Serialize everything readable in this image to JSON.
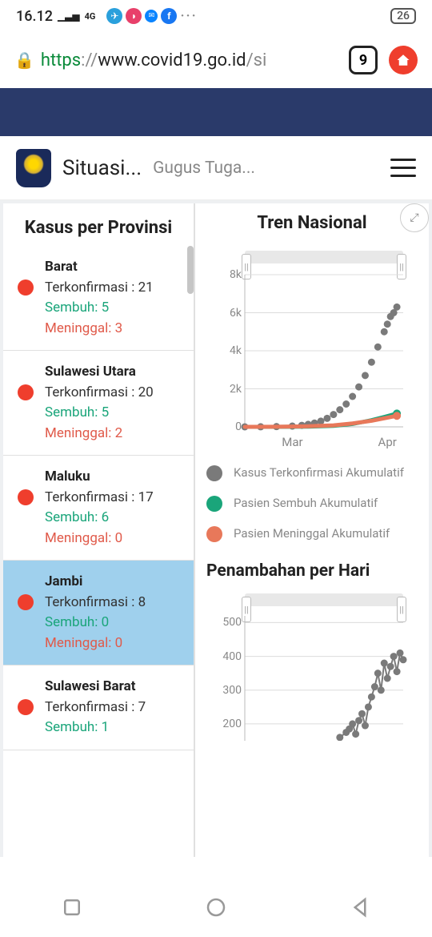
{
  "status": {
    "time": "16.12",
    "signal": "4G",
    "battery": "26"
  },
  "url": {
    "https": "https",
    "sep": "://",
    "host": "www.covid19.go.id",
    "path": "/si"
  },
  "tabs": "9",
  "header": {
    "title": "Situasi...",
    "subtitle": "Gugus Tuga..."
  },
  "left": {
    "title": "Kasus per Provinsi",
    "items": [
      {
        "name": "Barat",
        "conf": "Terkonfirmasi : 21",
        "sembuh": "Sembuh: 5",
        "meninggal": "Meninggal: 3",
        "selected": false
      },
      {
        "name": "Sulawesi Utara",
        "conf": "Terkonfirmasi : 20",
        "sembuh": "Sembuh: 5",
        "meninggal": "Meninggal: 2",
        "selected": false
      },
      {
        "name": "Maluku",
        "conf": "Terkonfirmasi : 17",
        "sembuh": "Sembuh: 6",
        "meninggal": "Meninggal: 0",
        "selected": false
      },
      {
        "name": "Jambi",
        "conf": "Terkonfirmasi : 8",
        "sembuh": "Sembuh: 0",
        "meninggal": "Meninggal: 0",
        "selected": true
      },
      {
        "name": "Sulawesi Barat",
        "conf": "Terkonfirmasi : 7",
        "sembuh": "Sembuh: 1",
        "meninggal": "",
        "selected": false
      }
    ]
  },
  "chart1": {
    "title": "Tren Nasional",
    "ylim": [
      0,
      8000
    ],
    "yticks": [
      0,
      2000,
      4000,
      6000,
      8000
    ],
    "yticklabels": [
      "0",
      "2k",
      "4k",
      "6k",
      "8k"
    ],
    "xlabels": [
      "Mar",
      "Apr"
    ],
    "xrange": [
      0,
      50
    ],
    "bg": "#ffffff",
    "grid": "#dcdcdc",
    "series": [
      {
        "id": "confirmed",
        "color": "#7a7a7a",
        "label": "Kasus Terkonfirmasi Akumulatif",
        "points": [
          [
            0,
            2
          ],
          [
            5,
            5
          ],
          [
            10,
            15
          ],
          [
            15,
            40
          ],
          [
            18,
            80
          ],
          [
            20,
            130
          ],
          [
            22,
            200
          ],
          [
            24,
            300
          ],
          [
            26,
            450
          ],
          [
            28,
            650
          ],
          [
            30,
            900
          ],
          [
            32,
            1200
          ],
          [
            34,
            1600
          ],
          [
            36,
            2100
          ],
          [
            38,
            2700
          ],
          [
            40,
            3400
          ],
          [
            42,
            4200
          ],
          [
            44,
            5000
          ],
          [
            45,
            5400
          ],
          [
            46,
            5800
          ],
          [
            47,
            6000
          ],
          [
            48,
            6300
          ]
        ]
      },
      {
        "id": "recovered",
        "color": "#1aa57a",
        "label": "Pasien Sembuh Akumulatif",
        "points": [
          [
            0,
            0
          ],
          [
            10,
            2
          ],
          [
            20,
            10
          ],
          [
            28,
            50
          ],
          [
            34,
            150
          ],
          [
            40,
            350
          ],
          [
            44,
            520
          ],
          [
            48,
            700
          ]
        ]
      },
      {
        "id": "death",
        "color": "#e8785a",
        "label": "Pasien Meninggal Akumulatif",
        "points": [
          [
            0,
            0
          ],
          [
            10,
            5
          ],
          [
            20,
            30
          ],
          [
            28,
            80
          ],
          [
            34,
            180
          ],
          [
            40,
            320
          ],
          [
            44,
            450
          ],
          [
            48,
            580
          ]
        ]
      }
    ]
  },
  "chart2": {
    "title": "Penambahan per Hari",
    "ylim": [
      150,
      520
    ],
    "yticks": [
      200,
      300,
      400,
      500
    ],
    "xrange": [
      0,
      50
    ],
    "series": {
      "color": "#7a7a7a",
      "points": [
        [
          30,
          160
        ],
        [
          32,
          175
        ],
        [
          33,
          185
        ],
        [
          34,
          200
        ],
        [
          35,
          170
        ],
        [
          36,
          210
        ],
        [
          37,
          230
        ],
        [
          38,
          195
        ],
        [
          39,
          250
        ],
        [
          40,
          280
        ],
        [
          41,
          310
        ],
        [
          42,
          350
        ],
        [
          43,
          300
        ],
        [
          44,
          380
        ],
        [
          45,
          335
        ],
        [
          46,
          370
        ],
        [
          47,
          400
        ],
        [
          48,
          355
        ],
        [
          49,
          410
        ],
        [
          50,
          390
        ]
      ]
    }
  }
}
